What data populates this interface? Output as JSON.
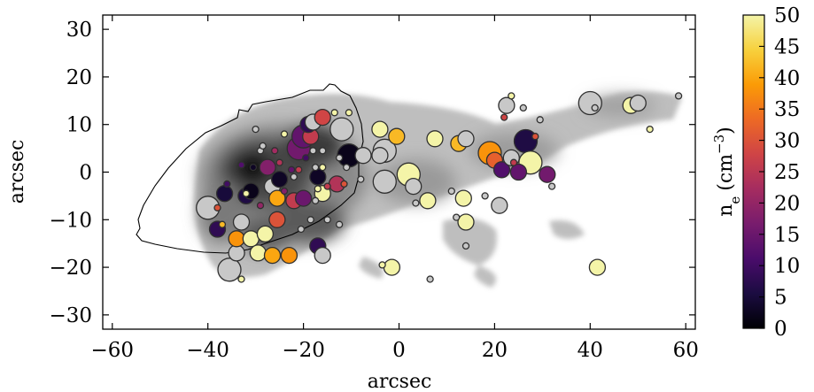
{
  "chart_data": {
    "type": "scatter",
    "title": "",
    "xlabel": "arcsec",
    "ylabel": "arcsec",
    "xlim": [
      -62,
      62
    ],
    "ylim": [
      -33,
      33
    ],
    "xticks": [
      -60,
      -40,
      -20,
      0,
      20,
      40,
      60
    ],
    "xtick_labels": [
      "−60",
      "−40",
      "−20",
      "0",
      "20",
      "40",
      "60"
    ],
    "yticks": [
      -30,
      -20,
      -10,
      0,
      10,
      20,
      30
    ],
    "ytick_labels": [
      "−30",
      "−20",
      "−10",
      "0",
      "10",
      "20",
      "30"
    ],
    "grid": false,
    "legend": "none",
    "background": "grayscale emission map",
    "colorbar": {
      "label_base": "n",
      "label_sub": "e",
      "label_unit": "(cm",
      "label_exp": "−3",
      "label_close": ")",
      "range": [
        0,
        50
      ],
      "ticks": [
        0,
        5,
        10,
        15,
        20,
        25,
        30,
        35,
        40,
        45,
        50
      ],
      "tick_labels": [
        "0",
        "5",
        "10",
        "15",
        "20",
        "25",
        "30",
        "35",
        "40",
        "45",
        "50"
      ],
      "colormap": "inferno",
      "stops": [
        "#000004",
        "#1b0c41",
        "#4a0c6b",
        "#781c6d",
        "#a52c60",
        "#cf4446",
        "#ed6925",
        "#fb9b06",
        "#f7d13d",
        "#fcffa4"
      ],
      "colormap_max": "#f4f4a8"
    },
    "no_data_color": "#c8c8c8",
    "marker_edge_color": "#303030",
    "points": [
      {
        "x": -35.5,
        "y": -20.5,
        "ne": null,
        "s": 3
      },
      {
        "x": -34.0,
        "y": -17.0,
        "ne": null,
        "s": 2
      },
      {
        "x": -33.0,
        "y": -22.5,
        "ne": 48,
        "s": 1
      },
      {
        "x": -38.0,
        "y": -7.5,
        "ne": 30,
        "s": 1
      },
      {
        "x": -40.0,
        "y": -7.5,
        "ne": null,
        "s": 3
      },
      {
        "x": -38.0,
        "y": -12.0,
        "ne": 8,
        "s": 2
      },
      {
        "x": -37.0,
        "y": -11.0,
        "ne": 42,
        "s": 1
      },
      {
        "x": -36.5,
        "y": -4.5,
        "ne": 5,
        "s": 2
      },
      {
        "x": -34.0,
        "y": -14.0,
        "ne": 38,
        "s": 2
      },
      {
        "x": -33.0,
        "y": -10.5,
        "ne": null,
        "s": 2
      },
      {
        "x": -32.0,
        "y": -5.0,
        "ne": 6,
        "s": 2
      },
      {
        "x": -31.0,
        "y": -14.0,
        "ne": 48,
        "s": 2
      },
      {
        "x": -29.0,
        "y": -7.0,
        "ne": 20,
        "s": 1
      },
      {
        "x": -31.0,
        "y": -4.0,
        "ne": 2,
        "s": 2
      },
      {
        "x": -29.5,
        "y": -17.0,
        "ne": 48,
        "s": 2
      },
      {
        "x": -28.0,
        "y": -13.0,
        "ne": 48,
        "s": 2
      },
      {
        "x": -26.5,
        "y": -3.0,
        "ne": null,
        "s": 2
      },
      {
        "x": -25.5,
        "y": -5.5,
        "ne": 40,
        "s": 2
      },
      {
        "x": -25.5,
        "y": -10.0,
        "ne": 30,
        "s": 2
      },
      {
        "x": -26.5,
        "y": -17.5,
        "ne": 40,
        "s": 2
      },
      {
        "x": -23.0,
        "y": -17.5,
        "ne": 38,
        "s": 2
      },
      {
        "x": -22.0,
        "y": -6.0,
        "ne": 26,
        "s": 2
      },
      {
        "x": -24.0,
        "y": -4.0,
        "ne": 18,
        "s": 1
      },
      {
        "x": -20.0,
        "y": -5.5,
        "ne": 15,
        "s": 2
      },
      {
        "x": -20.5,
        "y": -12.0,
        "ne": null,
        "s": 1
      },
      {
        "x": -18.5,
        "y": -10.0,
        "ne": null,
        "s": 1
      },
      {
        "x": -17.0,
        "y": -15.5,
        "ne": 8,
        "s": 2
      },
      {
        "x": -16.0,
        "y": -17.5,
        "ne": null,
        "s": 2
      },
      {
        "x": -15.0,
        "y": -3.0,
        "ne": 26,
        "s": 1
      },
      {
        "x": -16.0,
        "y": -4.5,
        "ne": 48,
        "s": 2
      },
      {
        "x": -13.0,
        "y": -2.5,
        "ne": 24,
        "s": 2
      },
      {
        "x": -17.0,
        "y": -3.5,
        "ne": 48,
        "s": 1
      },
      {
        "x": -12.5,
        "y": -11.0,
        "ne": null,
        "s": 1
      },
      {
        "x": -15.0,
        "y": -10.0,
        "ne": null,
        "s": 1
      },
      {
        "x": -17.5,
        "y": -6.0,
        "ne": null,
        "s": 1
      },
      {
        "x": -36.0,
        "y": -2.5,
        "ne": 10,
        "s": 1
      },
      {
        "x": -33.0,
        "y": 1.5,
        "ne": 12,
        "s": 1
      },
      {
        "x": -30.5,
        "y": 1.0,
        "ne": 3,
        "s": 1
      },
      {
        "x": -32.0,
        "y": -4.5,
        "ne": 48,
        "s": 1
      },
      {
        "x": -29.0,
        "y": 4.5,
        "ne": null,
        "s": 1
      },
      {
        "x": -28.5,
        "y": 5.5,
        "ne": null,
        "s": 1
      },
      {
        "x": -27.5,
        "y": 1.0,
        "ne": 18,
        "s": 2
      },
      {
        "x": -26.0,
        "y": 4.5,
        "ne": 22,
        "s": 1
      },
      {
        "x": -25.0,
        "y": 2.0,
        "ne": 24,
        "s": 1
      },
      {
        "x": -25.0,
        "y": -1.5,
        "ne": 3,
        "s": 2
      },
      {
        "x": -24.0,
        "y": 8.0,
        "ne": 48,
        "s": 1
      },
      {
        "x": -22.5,
        "y": 0.5,
        "ne": 14,
        "s": 1
      },
      {
        "x": -22.0,
        "y": -1.0,
        "ne": null,
        "s": 1
      },
      {
        "x": -21.0,
        "y": 0.5,
        "ne": 26,
        "s": 1
      },
      {
        "x": -19.5,
        "y": 3.0,
        "ne": 10,
        "s": 1
      },
      {
        "x": -18.0,
        "y": 4.5,
        "ne": null,
        "s": 1
      },
      {
        "x": -17.5,
        "y": 1.0,
        "ne": null,
        "s": 1
      },
      {
        "x": -17.0,
        "y": -1.0,
        "ne": 3,
        "s": 2
      },
      {
        "x": -16.0,
        "y": 1.0,
        "ne": 48,
        "s": 1
      },
      {
        "x": -21.0,
        "y": 5.0,
        "ne": 16,
        "s": 3
      },
      {
        "x": -20.0,
        "y": 7.5,
        "ne": 14,
        "s": 3
      },
      {
        "x": -18.5,
        "y": 7.5,
        "ne": 26,
        "s": 2
      },
      {
        "x": -19.0,
        "y": 10.0,
        "ne": 8,
        "s": 2
      },
      {
        "x": -18.0,
        "y": 10.5,
        "ne": null,
        "s": 2
      },
      {
        "x": -16.0,
        "y": 11.5,
        "ne": 28,
        "s": 2
      },
      {
        "x": -16.0,
        "y": 4.5,
        "ne": null,
        "s": 1
      },
      {
        "x": -13.5,
        "y": 12.5,
        "ne": 48,
        "s": 1
      },
      {
        "x": -12.0,
        "y": 9.0,
        "ne": null,
        "s": 3
      },
      {
        "x": -10.5,
        "y": 12.5,
        "ne": 48,
        "s": 1
      },
      {
        "x": -10.5,
        "y": 3.5,
        "ne": 2,
        "s": 3
      },
      {
        "x": -11.0,
        "y": 1.0,
        "ne": null,
        "s": 1
      },
      {
        "x": -11.5,
        "y": -2.5,
        "ne": 30,
        "s": 1
      },
      {
        "x": -12.5,
        "y": 3.0,
        "ne": null,
        "s": 1
      },
      {
        "x": -30.0,
        "y": 9.0,
        "ne": null,
        "s": 1
      },
      {
        "x": -8.0,
        "y": -1.5,
        "ne": null,
        "s": 1
      },
      {
        "x": -4.0,
        "y": 3.5,
        "ne": null,
        "s": 2
      },
      {
        "x": -7.5,
        "y": 3.5,
        "ne": null,
        "s": 2
      },
      {
        "x": -4.0,
        "y": 9.0,
        "ne": 48,
        "s": 2
      },
      {
        "x": -0.5,
        "y": 7.5,
        "ne": 42,
        "s": 2
      },
      {
        "x": -3.0,
        "y": 4.5,
        "ne": null,
        "s": 3
      },
      {
        "x": -3.0,
        "y": -2.0,
        "ne": null,
        "s": 3
      },
      {
        "x": 2.0,
        "y": -0.5,
        "ne": 48,
        "s": 3
      },
      {
        "x": 3.0,
        "y": -3.0,
        "ne": null,
        "s": 2
      },
      {
        "x": 3.5,
        "y": -6.5,
        "ne": null,
        "s": 1
      },
      {
        "x": 6.0,
        "y": -6.0,
        "ne": 48,
        "s": 2
      },
      {
        "x": 7.5,
        "y": 7.0,
        "ne": 48,
        "s": 2
      },
      {
        "x": 12.5,
        "y": 6.0,
        "ne": 42,
        "s": 2
      },
      {
        "x": 14.0,
        "y": 7.0,
        "ne": null,
        "s": 2
      },
      {
        "x": 11.0,
        "y": -4.0,
        "ne": null,
        "s": 1
      },
      {
        "x": 13.5,
        "y": -5.5,
        "ne": 48,
        "s": 2
      },
      {
        "x": 12.0,
        "y": -9.5,
        "ne": null,
        "s": 1
      },
      {
        "x": 14.0,
        "y": -10.5,
        "ne": 48,
        "s": 2
      },
      {
        "x": 14.0,
        "y": -15.5,
        "ne": null,
        "s": 1
      },
      {
        "x": 18.0,
        "y": -5.0,
        "ne": null,
        "s": 1
      },
      {
        "x": 19.0,
        "y": 4.0,
        "ne": 38,
        "s": 3
      },
      {
        "x": 20.0,
        "y": 2.5,
        "ne": 32,
        "s": 2
      },
      {
        "x": 21.0,
        "y": -7.0,
        "ne": null,
        "s": 2
      },
      {
        "x": 21.5,
        "y": 0.5,
        "ne": 12,
        "s": 2
      },
      {
        "x": 22.5,
        "y": 14.0,
        "ne": null,
        "s": 2
      },
      {
        "x": 23.5,
        "y": 16.0,
        "ne": 48,
        "s": 1
      },
      {
        "x": 22.0,
        "y": 11.5,
        "ne": 28,
        "s": 1
      },
      {
        "x": 23.5,
        "y": 3.0,
        "ne": null,
        "s": 2
      },
      {
        "x": 24.0,
        "y": 2.0,
        "ne": 26,
        "s": 1
      },
      {
        "x": 25.0,
        "y": 0.0,
        "ne": 14,
        "s": 2
      },
      {
        "x": 26.0,
        "y": 13.5,
        "ne": null,
        "s": 1
      },
      {
        "x": 26.5,
        "y": 6.5,
        "ne": 6,
        "s": 3
      },
      {
        "x": 27.5,
        "y": 2.0,
        "ne": 48,
        "s": 3
      },
      {
        "x": 28.5,
        "y": 7.5,
        "ne": 30,
        "s": 1
      },
      {
        "x": 31.0,
        "y": -0.5,
        "ne": 16,
        "s": 2
      },
      {
        "x": 32.0,
        "y": -3.0,
        "ne": null,
        "s": 1
      },
      {
        "x": 29.5,
        "y": 11.0,
        "ne": null,
        "s": 1
      },
      {
        "x": 40.0,
        "y": 14.5,
        "ne": null,
        "s": 3
      },
      {
        "x": 41.0,
        "y": 13.5,
        "ne": null,
        "s": 1
      },
      {
        "x": 48.5,
        "y": 14.0,
        "ne": 48,
        "s": 2
      },
      {
        "x": 50.0,
        "y": 14.5,
        "ne": null,
        "s": 2
      },
      {
        "x": 52.5,
        "y": 9.0,
        "ne": 48,
        "s": 1
      },
      {
        "x": 58.5,
        "y": 16.0,
        "ne": null,
        "s": 1
      },
      {
        "x": 41.5,
        "y": -20.0,
        "ne": 48,
        "s": 2
      },
      {
        "x": -1.5,
        "y": -20.0,
        "ne": 48,
        "s": 2
      },
      {
        "x": -3.5,
        "y": -19.5,
        "ne": 48,
        "s": 1
      },
      {
        "x": 6.5,
        "y": -22.5,
        "ne": null,
        "s": 1
      }
    ]
  }
}
